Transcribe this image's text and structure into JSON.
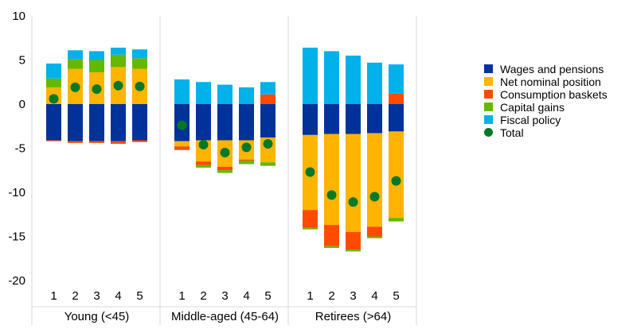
{
  "chart_data": {
    "type": "bar",
    "stacked": true,
    "title": "",
    "xlabel": "",
    "ylabel": "",
    "ylim": [
      -20,
      10
    ],
    "yticks": [
      10,
      5,
      0,
      -5,
      -10,
      -15,
      -20
    ],
    "grid": false,
    "legend_position": "right",
    "groups": [
      {
        "label": "Young (<45)",
        "categories": [
          "1",
          "2",
          "3",
          "4",
          "5"
        ]
      },
      {
        "label": "Middle-aged (45-64)",
        "categories": [
          "1",
          "2",
          "3",
          "4",
          "5"
        ]
      },
      {
        "label": "Retirees (>64)",
        "categories": [
          "1",
          "2",
          "3",
          "4",
          "5"
        ]
      }
    ],
    "series": [
      {
        "name": "Wages and pensions",
        "color": "#003299",
        "values": [
          -4.1,
          -4.2,
          -4.2,
          -4.2,
          -4.1,
          -4.2,
          -4.1,
          -4.1,
          -4.1,
          -3.8,
          -3.5,
          -3.4,
          -3.4,
          -3.3,
          -3.1
        ]
      },
      {
        "name": "Net nominal position",
        "color": "#FFB400",
        "values": [
          1.9,
          4.0,
          3.6,
          4.2,
          4.0,
          -0.6,
          -2.4,
          -3.0,
          -2.2,
          -2.8,
          -8.5,
          -10.3,
          -11.1,
          -10.6,
          -9.8
        ]
      },
      {
        "name": "Consumption baskets",
        "color": "#FF4B00",
        "values": [
          -0.1,
          -0.2,
          -0.2,
          -0.3,
          -0.2,
          -0.4,
          -0.4,
          -0.4,
          -0.1,
          1.1,
          -2.0,
          -2.4,
          -2.0,
          -1.1,
          1.2
        ]
      },
      {
        "name": "Capital gains",
        "color": "#65B800",
        "values": [
          1.0,
          1.1,
          1.4,
          1.4,
          1.2,
          0.0,
          -0.3,
          -0.3,
          -0.4,
          -0.4,
          -0.2,
          -0.2,
          -0.2,
          -0.2,
          -0.4
        ]
      },
      {
        "name": "Fiscal policy",
        "color": "#00B1EA",
        "values": [
          1.7,
          1.0,
          1.0,
          0.8,
          1.0,
          2.8,
          2.5,
          2.2,
          1.9,
          1.4,
          6.4,
          6.0,
          5.5,
          4.7,
          3.3
        ]
      }
    ],
    "total": {
      "name": "Total",
      "color": "#00782A",
      "values": [
        0.6,
        1.9,
        1.7,
        2.1,
        2.0,
        -2.4,
        -4.6,
        -5.5,
        -4.9,
        -4.5,
        -7.7,
        -10.3,
        -11.1,
        -10.5,
        -8.7
      ]
    }
  }
}
